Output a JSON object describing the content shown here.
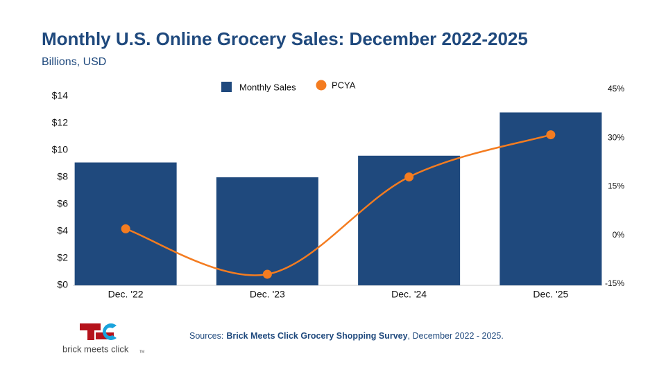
{
  "chart_data": {
    "type": "combo",
    "title": "Monthly U.S. Online Grocery Sales: December 2022-2025",
    "subtitle": "Billions, USD",
    "categories": [
      "Dec. '22",
      "Dec. '23",
      "Dec. '24",
      "Dec. '25"
    ],
    "series": [
      {
        "name": "Monthly Sales",
        "type": "bar",
        "color": "#1f497d",
        "values": [
          9.1,
          8.0,
          9.6,
          12.8
        ]
      },
      {
        "name": "PCYA",
        "type": "line",
        "axis": "y2",
        "color": "#f47c20",
        "values": [
          2,
          -12,
          18,
          31
        ]
      }
    ],
    "ylim": [
      0,
      14
    ],
    "yticks": [
      {
        "value": 0,
        "label": "$0"
      },
      {
        "value": 2,
        "label": "$2"
      },
      {
        "value": 4,
        "label": "$4"
      },
      {
        "value": 6,
        "label": "$6"
      },
      {
        "value": 8,
        "label": "$8"
      },
      {
        "value": 10,
        "label": "$10"
      },
      {
        "value": 12,
        "label": "$12"
      },
      {
        "value": 14,
        "label": "$14"
      }
    ],
    "y2lim": [
      -15,
      45
    ],
    "y2ticks": [
      {
        "value": -15,
        "label": "-15%"
      },
      {
        "value": 0,
        "label": "0%"
      },
      {
        "value": 15,
        "label": "15%"
      },
      {
        "value": 30,
        "label": "30%"
      },
      {
        "value": 45,
        "label": "45%"
      }
    ],
    "grid": false
  },
  "source": {
    "prefix": "Sources:",
    "name": "Brick Meets Click Grocery Shopping Survey",
    "suffix": ", December 2022 - 2025."
  },
  "logo": {
    "text": "brick meets click",
    "mark": "TM"
  }
}
